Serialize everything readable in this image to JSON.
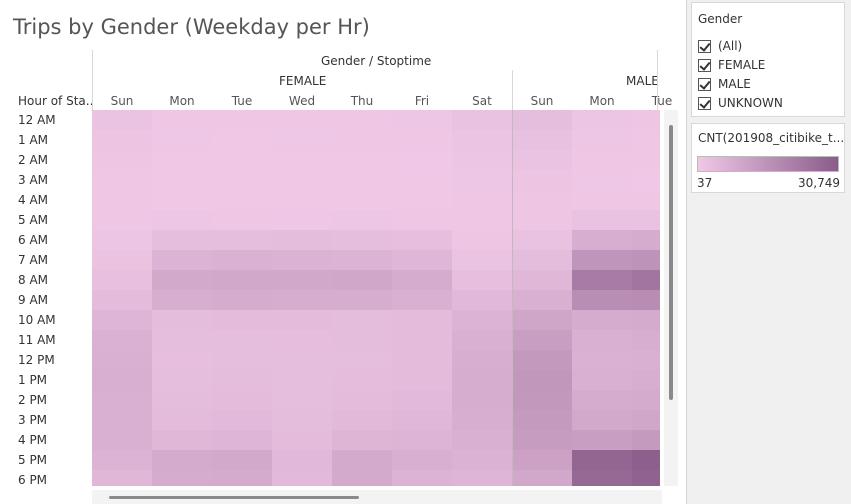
{
  "title": "Trips by Gender (Weekday per Hr)",
  "header": {
    "columns_title": "Gender / Stoptime",
    "row_header": "Hour of Sta..",
    "genders": [
      "FEMALE",
      "MALE"
    ],
    "days": [
      "Sun",
      "Mon",
      "Tue",
      "Wed",
      "Thu",
      "Fri",
      "Sat",
      "Sun",
      "Mon",
      "Tue"
    ]
  },
  "filter": {
    "title": "Gender",
    "items": [
      {
        "label": "(All)",
        "checked": true
      },
      {
        "label": "FEMALE",
        "checked": true
      },
      {
        "label": "MALE",
        "checked": true
      },
      {
        "label": "UNKNOWN",
        "checked": true
      }
    ]
  },
  "legend": {
    "title": "CNT(201908_citibike_t...",
    "min_label": "37",
    "max_label": "30,749",
    "min": 37,
    "max": 30749,
    "color_low": "#f0c8e6",
    "color_high": "#8a5c8a"
  },
  "chart_data": {
    "type": "heatmap",
    "title": "Trips by Gender (Weekday per Hr)",
    "rows": [
      "12 AM",
      "1 AM",
      "2 AM",
      "3 AM",
      "4 AM",
      "5 AM",
      "6 AM",
      "7 AM",
      "8 AM",
      "9 AM",
      "10 AM",
      "11 AM",
      "12 PM",
      "1 PM",
      "2 PM",
      "3 PM",
      "4 PM",
      "5 PM",
      "6 PM"
    ],
    "columns": [
      {
        "gender": "FEMALE",
        "day": "Sun"
      },
      {
        "gender": "FEMALE",
        "day": "Mon"
      },
      {
        "gender": "FEMALE",
        "day": "Tue"
      },
      {
        "gender": "FEMALE",
        "day": "Wed"
      },
      {
        "gender": "FEMALE",
        "day": "Thu"
      },
      {
        "gender": "FEMALE",
        "day": "Fri"
      },
      {
        "gender": "FEMALE",
        "day": "Sat"
      },
      {
        "gender": "MALE",
        "day": "Sun"
      },
      {
        "gender": "MALE",
        "day": "Mon"
      },
      {
        "gender": "MALE",
        "day": "Tue"
      }
    ],
    "values": [
      [
        1500,
        400,
        300,
        350,
        400,
        500,
        1800,
        3000,
        800,
        700
      ],
      [
        1000,
        200,
        150,
        200,
        250,
        300,
        1200,
        2000,
        500,
        400
      ],
      [
        700,
        120,
        100,
        120,
        150,
        180,
        800,
        1400,
        300,
        250
      ],
      [
        400,
        100,
        80,
        90,
        100,
        120,
        500,
        900,
        200,
        180
      ],
      [
        300,
        150,
        130,
        140,
        150,
        160,
        350,
        600,
        400,
        350
      ],
      [
        300,
        500,
        450,
        480,
        500,
        450,
        300,
        700,
        1800,
        1700
      ],
      [
        800,
        3000,
        3200,
        3300,
        3200,
        2800,
        700,
        1800,
        7500,
        8000
      ],
      [
        1600,
        6000,
        6500,
        6300,
        6100,
        5200,
        1500,
        3500,
        14500,
        15000
      ],
      [
        2500,
        9000,
        9500,
        9300,
        9600,
        8000,
        2800,
        5000,
        22000,
        23500
      ],
      [
        3800,
        7500,
        8000,
        7800,
        7600,
        6800,
        4500,
        7000,
        16500,
        17000
      ],
      [
        5500,
        3500,
        3800,
        3600,
        3500,
        3800,
        6000,
        10000,
        8000,
        8500
      ],
      [
        6500,
        3000,
        3200,
        3100,
        3300,
        3600,
        7000,
        12000,
        7000,
        7500
      ],
      [
        7000,
        2800,
        3000,
        2900,
        3200,
        3600,
        7500,
        13500,
        6500,
        7000
      ],
      [
        7200,
        3000,
        3300,
        3000,
        3400,
        3800,
        7800,
        14000,
        7000,
        7500
      ],
      [
        7000,
        3300,
        3600,
        3000,
        3800,
        4200,
        7600,
        13800,
        8000,
        8500
      ],
      [
        7000,
        3800,
        4200,
        3300,
        4300,
        4800,
        7500,
        13000,
        9000,
        9800
      ],
      [
        6800,
        5000,
        5500,
        3800,
        5300,
        5700,
        7000,
        12500,
        12000,
        13000
      ],
      [
        6000,
        8500,
        9000,
        4500,
        8800,
        7200,
        6400,
        11000,
        28000,
        30000
      ],
      [
        5000,
        8000,
        8500,
        4200,
        8600,
        6000,
        5500,
        9500,
        27000,
        29000
      ]
    ],
    "measure": "CNT(201908_citibike_t...",
    "range": [
      37,
      30749
    ]
  }
}
